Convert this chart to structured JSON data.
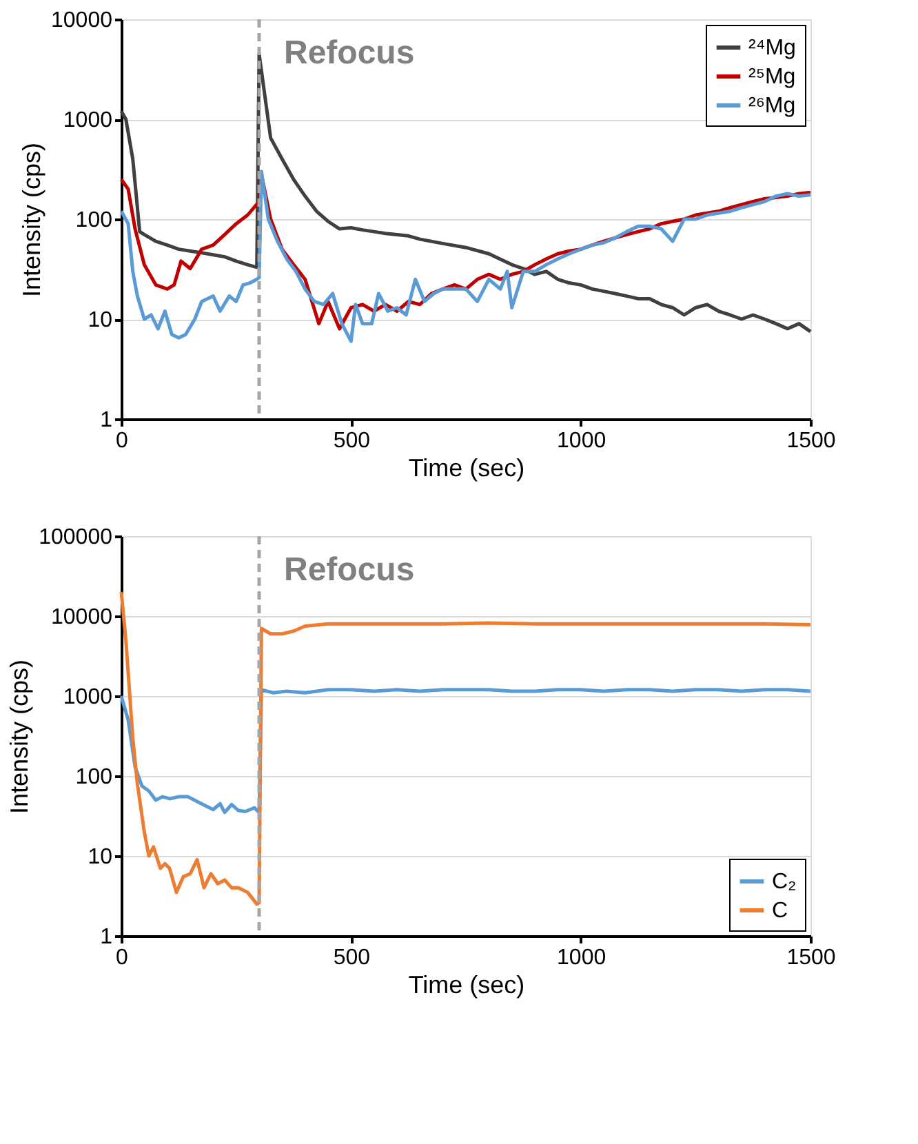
{
  "chart_data": [
    {
      "type": "line",
      "xlabel": "Time  (sec)",
      "ylabel": "Intensity (cps)",
      "log": "y",
      "grid": "y",
      "legend": "top right",
      "line_style": "solid",
      "marker": "none",
      "xlim": [
        0,
        1500
      ],
      "xticks": [
        0,
        500,
        1000,
        1500
      ],
      "ylim": [
        1,
        10000
      ],
      "yticks": [
        1,
        10,
        100,
        1000,
        10000
      ],
      "ref_lines": [
        {
          "axis": "x",
          "value": 300,
          "label": "Refocus",
          "color": "#a6a6a6",
          "line_style": "dashed"
        }
      ],
      "series": [
        {
          "name": "²⁴Mg",
          "color": "#404040",
          "x": [
            0,
            10,
            25,
            40,
            50,
            75,
            100,
            125,
            150,
            175,
            200,
            225,
            250,
            275,
            295,
            300,
            325,
            350,
            375,
            400,
            425,
            450,
            475,
            500,
            525,
            550,
            575,
            600,
            625,
            650,
            700,
            750,
            800,
            850,
            875,
            900,
            925,
            950,
            975,
            1000,
            1025,
            1050,
            1075,
            1100,
            1125,
            1150,
            1175,
            1200,
            1225,
            1250,
            1275,
            1300,
            1325,
            1350,
            1375,
            1400,
            1425,
            1450,
            1475,
            1500
          ],
          "values": [
            1200,
            1000,
            400,
            75,
            70,
            60,
            55,
            50,
            48,
            46,
            44,
            42,
            38,
            35,
            33,
            4500,
            650,
            400,
            250,
            170,
            120,
            95,
            80,
            82,
            78,
            75,
            72,
            70,
            68,
            63,
            57,
            52,
            45,
            35,
            32,
            28,
            30,
            25,
            23,
            22,
            20,
            19,
            18,
            17,
            16,
            16,
            14,
            13,
            11,
            13,
            14,
            12,
            11,
            10,
            11,
            10,
            9,
            8,
            9,
            7.5
          ]
        },
        {
          "name": "²⁵Mg",
          "color": "#c00000",
          "x": [
            0,
            15,
            30,
            50,
            75,
            100,
            115,
            130,
            150,
            175,
            200,
            225,
            250,
            275,
            300,
            305,
            325,
            350,
            375,
            400,
            415,
            430,
            450,
            475,
            500,
            525,
            550,
            575,
            600,
            625,
            650,
            675,
            700,
            725,
            750,
            775,
            800,
            825,
            850,
            875,
            900,
            925,
            950,
            975,
            1000,
            1025,
            1050,
            1075,
            1100,
            1125,
            1150,
            1175,
            1200,
            1225,
            1250,
            1275,
            1300,
            1325,
            1350,
            1375,
            1400,
            1425,
            1450,
            1475,
            1500
          ],
          "values": [
            250,
            200,
            80,
            35,
            22,
            20,
            22,
            38,
            32,
            50,
            55,
            70,
            90,
            110,
            150,
            280,
            100,
            50,
            35,
            25,
            15,
            9,
            15,
            8,
            13,
            14,
            12,
            14,
            12,
            15,
            14,
            18,
            20,
            22,
            20,
            25,
            28,
            25,
            28,
            30,
            35,
            40,
            45,
            48,
            50,
            55,
            60,
            65,
            70,
            75,
            80,
            90,
            95,
            100,
            110,
            115,
            120,
            130,
            140,
            150,
            160,
            165,
            170,
            180,
            185
          ]
        },
        {
          "name": "²⁶Mg",
          "color": "#5b9bd5",
          "x": [
            0,
            15,
            25,
            35,
            50,
            65,
            80,
            95,
            110,
            125,
            140,
            160,
            175,
            200,
            215,
            235,
            250,
            265,
            280,
            295,
            300,
            305,
            320,
            340,
            360,
            380,
            400,
            420,
            440,
            460,
            480,
            500,
            510,
            525,
            545,
            560,
            580,
            600,
            620,
            640,
            660,
            680,
            700,
            725,
            750,
            775,
            800,
            825,
            840,
            850,
            875,
            900,
            925,
            950,
            975,
            1000,
            1025,
            1050,
            1075,
            1100,
            1125,
            1150,
            1175,
            1200,
            1225,
            1250,
            1275,
            1300,
            1325,
            1350,
            1375,
            1400,
            1425,
            1450,
            1475,
            1500
          ],
          "values": [
            120,
            90,
            30,
            17,
            10,
            11,
            8,
            12,
            7,
            6.5,
            7,
            10,
            15,
            17,
            12,
            17,
            15,
            22,
            23,
            25,
            26,
            300,
            100,
            60,
            40,
            30,
            20,
            15,
            14,
            18,
            9,
            6,
            14,
            9,
            9,
            18,
            12,
            13,
            11,
            25,
            15,
            18,
            20,
            20,
            20,
            15,
            25,
            20,
            30,
            13,
            30,
            30,
            35,
            40,
            45,
            50,
            55,
            58,
            65,
            75,
            85,
            85,
            80,
            60,
            100,
            100,
            110,
            115,
            120,
            130,
            140,
            150,
            170,
            180,
            170,
            175
          ]
        }
      ]
    },
    {
      "type": "line",
      "xlabel": "Time  (sec)",
      "ylabel": "Intensity (cps)",
      "log": "y",
      "grid": "y",
      "legend": "bottom right",
      "line_style": "solid",
      "marker": "none",
      "xlim": [
        0,
        1500
      ],
      "xticks": [
        0,
        500,
        1000,
        1500
      ],
      "ylim": [
        1,
        100000
      ],
      "yticks": [
        1,
        10,
        100,
        1000,
        10000,
        100000
      ],
      "ref_lines": [
        {
          "axis": "x",
          "value": 300,
          "label": "Refocus",
          "color": "#a6a6a6",
          "line_style": "dashed"
        }
      ],
      "series": [
        {
          "name": "C₂",
          "color": "#5b9bd5",
          "x": [
            0,
            15,
            30,
            45,
            60,
            75,
            90,
            105,
            125,
            145,
            165,
            185,
            200,
            215,
            225,
            240,
            255,
            270,
            290,
            300,
            305,
            330,
            360,
            400,
            450,
            500,
            550,
            600,
            650,
            700,
            750,
            800,
            850,
            900,
            950,
            1000,
            1050,
            1100,
            1150,
            1200,
            1250,
            1300,
            1350,
            1400,
            1450,
            1500
          ],
          "values": [
            1000,
            500,
            130,
            75,
            65,
            50,
            55,
            52,
            55,
            55,
            48,
            42,
            38,
            45,
            35,
            44,
            37,
            36,
            40,
            35,
            1200,
            1100,
            1150,
            1100,
            1200,
            1200,
            1150,
            1200,
            1150,
            1200,
            1200,
            1200,
            1150,
            1150,
            1200,
            1200,
            1150,
            1200,
            1200,
            1150,
            1200,
            1200,
            1150,
            1200,
            1200,
            1150
          ]
        },
        {
          "name": "C",
          "color": "#ed7d31",
          "x": [
            0,
            10,
            25,
            35,
            50,
            60,
            70,
            85,
            95,
            105,
            120,
            135,
            150,
            165,
            180,
            195,
            210,
            225,
            240,
            255,
            275,
            295,
            300,
            305,
            325,
            350,
            375,
            400,
            450,
            500,
            600,
            700,
            800,
            900,
            1000,
            1100,
            1200,
            1300,
            1400,
            1500
          ],
          "values": [
            20000,
            5000,
            300,
            80,
            20,
            10,
            13,
            7,
            8,
            7,
            3.5,
            5.5,
            6,
            9,
            4,
            6,
            4.5,
            5,
            4,
            4,
            3.5,
            2.5,
            2.6,
            7000,
            6000,
            6000,
            6500,
            7500,
            8000,
            8000,
            8000,
            8000,
            8200,
            8000,
            8000,
            8000,
            8000,
            8000,
            8000,
            7800
          ]
        }
      ]
    }
  ]
}
